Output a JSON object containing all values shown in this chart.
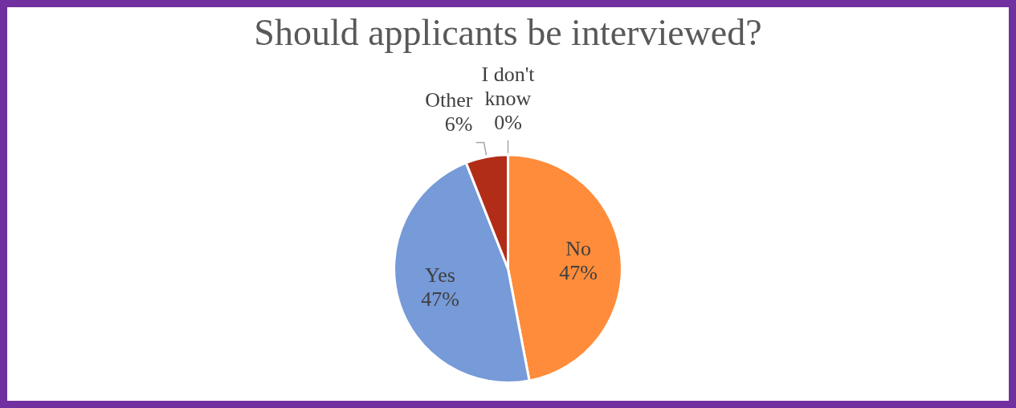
{
  "chart_data": {
    "type": "pie",
    "title": "Should applicants be interviewed?",
    "categories": [
      "No",
      "Yes",
      "Other",
      "I don't know"
    ],
    "values": [
      47,
      47,
      6,
      0
    ],
    "value_labels": [
      "47%",
      "47%",
      "6%",
      "0%"
    ],
    "colors": [
      "#ff8c3a",
      "#779ad8",
      "#b22d18",
      "#a5a5a5"
    ],
    "legend": false
  }
}
